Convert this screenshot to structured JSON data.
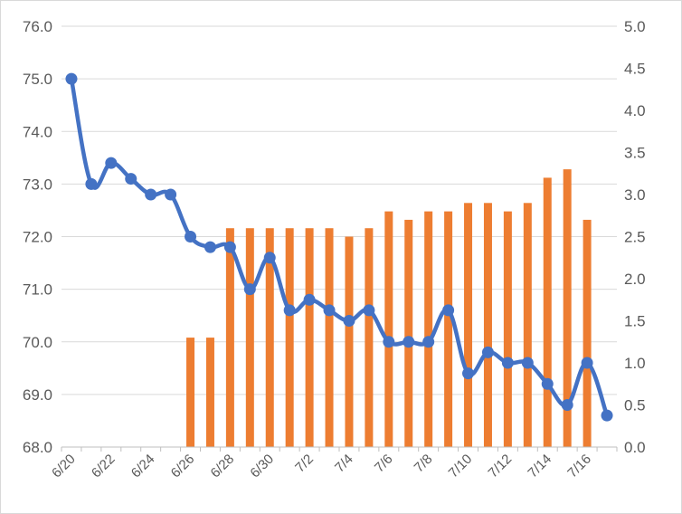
{
  "chart_data": {
    "type": "bar+line (dual axis)",
    "title": "",
    "x_categories": [
      "6/20",
      "6/21",
      "6/22",
      "6/23",
      "6/24",
      "6/25",
      "6/26",
      "6/27",
      "6/28",
      "6/29",
      "6/30",
      "7/1",
      "7/2",
      "7/3",
      "7/4",
      "7/5",
      "7/6",
      "7/7",
      "7/8",
      "7/9",
      "7/10",
      "7/11",
      "7/12",
      "7/13",
      "7/14",
      "7/15",
      "7/16",
      "7/17"
    ],
    "x_tick_labels": [
      "6/20",
      "6/22",
      "6/24",
      "6/26",
      "6/28",
      "6/30",
      "7/2",
      "7/4",
      "7/6",
      "7/8",
      "7/10",
      "7/12",
      "7/14",
      "7/16"
    ],
    "y_left": {
      "lim": [
        68.0,
        76.0
      ],
      "ticks": [
        "68.0",
        "69.0",
        "70.0",
        "71.0",
        "72.0",
        "73.0",
        "74.0",
        "75.0",
        "76.0"
      ]
    },
    "y_right": {
      "lim": [
        0.0,
        5.0
      ],
      "ticks": [
        "0.0",
        "0.5",
        "1.0",
        "1.5",
        "2.0",
        "2.5",
        "3.0",
        "3.5",
        "4.0",
        "4.5",
        "5.0"
      ]
    },
    "series": [
      {
        "type": "line",
        "axis": "left",
        "color": "#4472c4",
        "values": [
          75.0,
          73.0,
          73.4,
          73.1,
          72.8,
          72.8,
          72.0,
          71.8,
          71.8,
          71.0,
          71.6,
          70.6,
          70.8,
          70.6,
          70.4,
          70.6,
          70.0,
          70.0,
          70.0,
          70.6,
          69.4,
          69.8,
          69.6,
          69.6,
          69.2,
          68.8,
          69.6,
          68.6
        ]
      },
      {
        "type": "bar",
        "axis": "right",
        "color": "#ed7d31",
        "values": [
          null,
          null,
          null,
          null,
          null,
          null,
          1.3,
          1.3,
          2.6,
          2.6,
          2.6,
          2.6,
          2.6,
          2.6,
          2.5,
          2.6,
          2.8,
          2.7,
          2.8,
          2.8,
          2.9,
          2.9,
          2.8,
          2.9,
          3.2,
          3.3,
          2.7,
          null
        ]
      }
    ],
    "grid": "horizontal",
    "legend": "none"
  }
}
